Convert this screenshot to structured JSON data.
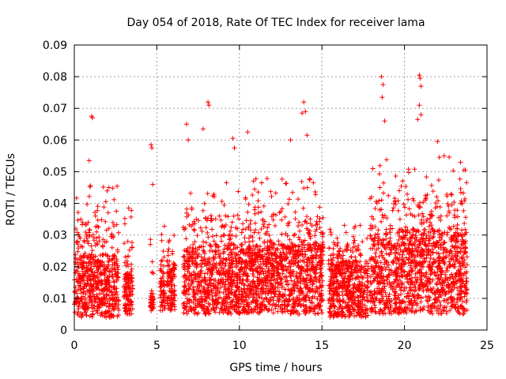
{
  "chart_data": {
    "type": "scatter",
    "title": "Day 054 of 2018, Rate Of TEC Index for receiver lama",
    "xlabel": "GPS time / hours",
    "ylabel": "ROTI / TECUs",
    "xlim": [
      0,
      25
    ],
    "ylim": [
      0,
      0.09
    ],
    "xticks": [
      0,
      5,
      10,
      15,
      20,
      25
    ],
    "xtick_labels": [
      "0",
      "5",
      "10",
      "15",
      "20",
      "25"
    ],
    "yticks": [
      0,
      0.01,
      0.02,
      0.03,
      0.04,
      0.05,
      0.06,
      0.07,
      0.08,
      0.09
    ],
    "ytick_labels": [
      "0",
      "0.01",
      "0.02",
      "0.03",
      "0.04",
      "0.05",
      "0.06",
      "0.07",
      "0.08",
      "0.09"
    ],
    "grid": true,
    "marker": "+",
    "marker_color": "#ff0000",
    "dense_segments": [
      {
        "start": 0.0,
        "end": 2.7,
        "base_min": 0.004,
        "base_max": 0.024,
        "peak": 0.046
      },
      {
        "start": 3.0,
        "end": 3.55,
        "base_min": 0.005,
        "base_max": 0.018,
        "peak": 0.039
      },
      {
        "start": 4.6,
        "end": 4.8,
        "base_min": 0.006,
        "base_max": 0.011,
        "peak": 0.031
      },
      {
        "start": 5.2,
        "end": 5.5,
        "base_min": 0.006,
        "base_max": 0.016,
        "peak": 0.034
      },
      {
        "start": 5.6,
        "end": 6.1,
        "base_min": 0.006,
        "base_max": 0.022,
        "peak": 0.035
      },
      {
        "start": 6.6,
        "end": 15.1,
        "base_min": 0.005,
        "base_max": 0.027,
        "peak": 0.048
      },
      {
        "start": 15.4,
        "end": 17.8,
        "base_min": 0.004,
        "base_max": 0.022,
        "peak": 0.034
      },
      {
        "start": 17.9,
        "end": 23.8,
        "base_min": 0.005,
        "base_max": 0.032,
        "peak": 0.055
      }
    ],
    "outliers": [
      {
        "x": 1.05,
        "y": 0.0675
      },
      {
        "x": 1.1,
        "y": 0.067
      },
      {
        "x": 0.9,
        "y": 0.0535
      },
      {
        "x": 2.1,
        "y": 0.045
      },
      {
        "x": 4.65,
        "y": 0.0585
      },
      {
        "x": 4.7,
        "y": 0.0575
      },
      {
        "x": 4.75,
        "y": 0.046
      },
      {
        "x": 6.8,
        "y": 0.065
      },
      {
        "x": 6.9,
        "y": 0.06
      },
      {
        "x": 7.8,
        "y": 0.0635
      },
      {
        "x": 8.1,
        "y": 0.072
      },
      {
        "x": 8.15,
        "y": 0.071
      },
      {
        "x": 9.6,
        "y": 0.0605
      },
      {
        "x": 9.7,
        "y": 0.0575
      },
      {
        "x": 10.5,
        "y": 0.0625
      },
      {
        "x": 13.1,
        "y": 0.06
      },
      {
        "x": 13.8,
        "y": 0.0685
      },
      {
        "x": 13.9,
        "y": 0.072
      },
      {
        "x": 14.0,
        "y": 0.069
      },
      {
        "x": 14.1,
        "y": 0.0615
      },
      {
        "x": 18.6,
        "y": 0.08
      },
      {
        "x": 18.7,
        "y": 0.0775
      },
      {
        "x": 18.65,
        "y": 0.0735
      },
      {
        "x": 18.8,
        "y": 0.066
      },
      {
        "x": 20.9,
        "y": 0.0805
      },
      {
        "x": 20.95,
        "y": 0.0795
      },
      {
        "x": 21.0,
        "y": 0.077
      },
      {
        "x": 20.9,
        "y": 0.071
      },
      {
        "x": 21.0,
        "y": 0.068
      },
      {
        "x": 20.8,
        "y": 0.0665
      },
      {
        "x": 22.0,
        "y": 0.0595
      },
      {
        "x": 22.4,
        "y": 0.055
      },
      {
        "x": 23.6,
        "y": 0.0505
      }
    ]
  }
}
